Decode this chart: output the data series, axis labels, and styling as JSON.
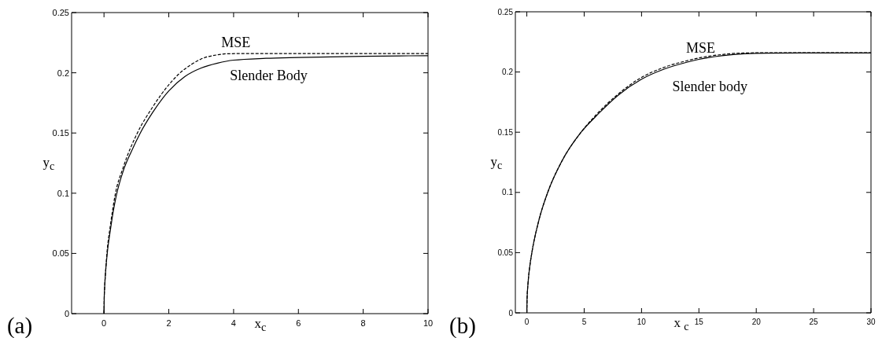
{
  "chart_data": [
    {
      "type": "line",
      "xlabel": "x$_{c}$",
      "ylabel": "y$_{c}$",
      "annotations": [
        "(a)"
      ],
      "xlim": [
        -1,
        10
      ],
      "xticks": [
        0,
        2,
        4,
        6,
        8,
        10
      ],
      "ylim": [
        0,
        0.25
      ],
      "yticks": [
        0,
        0.05,
        0.1,
        0.15,
        0.2,
        0.25
      ],
      "series": [
        {
          "name": "MSE",
          "color": "#000000",
          "line_style": "dashed",
          "x": [
            0,
            0.005,
            0.02,
            0.05,
            0.09,
            0.19,
            0.26,
            0.34,
            0.6,
            1.03,
            1.5,
            2,
            2.33,
            2.7,
            3,
            3.5,
            3.8,
            4.5,
            10
          ],
          "values": [
            0,
            0.011,
            0.022,
            0.035,
            0.05,
            0.072,
            0.085,
            0.098,
            0.122,
            0.15,
            0.1715,
            0.19,
            0.1995,
            0.207,
            0.2115,
            0.2149,
            0.2158,
            0.216,
            0.216
          ]
        },
        {
          "name": "Slender Body",
          "color": "#000000",
          "line_style": "solid",
          "x": [
            0,
            0.005,
            0.02,
            0.05,
            0.1,
            0.2,
            0.28,
            0.38,
            0.6,
            0.85,
            1.12,
            1.5,
            2,
            2.5,
            3,
            3.5,
            4,
            5,
            6,
            8,
            10
          ],
          "values": [
            0,
            0.011,
            0.022,
            0.035,
            0.05,
            0.07,
            0.084,
            0.098,
            0.119,
            0.135,
            0.15,
            0.167,
            0.185,
            0.197,
            0.204,
            0.208,
            0.2105,
            0.212,
            0.2127,
            0.2137,
            0.2142
          ]
        }
      ]
    },
    {
      "type": "line",
      "xlabel": "x $_{c}$",
      "ylabel": "y$_{c}$",
      "annotations": [
        "(b)"
      ],
      "xlim": [
        -1,
        30
      ],
      "xticks": [
        0,
        5,
        10,
        15,
        20,
        25,
        30
      ],
      "ylim": [
        0,
        0.25
      ],
      "yticks": [
        0,
        0.05,
        0.1,
        0.15,
        0.2,
        0.25
      ],
      "series": [
        {
          "name": "MSE",
          "color": "#000000",
          "line_style": "dashed",
          "x": [
            0,
            0.02,
            0.1,
            0.25,
            0.44,
            1,
            1.86,
            3,
            4.73,
            6,
            8,
            10,
            12,
            14,
            15,
            17,
            19,
            21,
            25,
            30
          ],
          "values": [
            0,
            0.011,
            0.024,
            0.038,
            0.05,
            0.075,
            0.101,
            0.125,
            0.15,
            0.164,
            0.182,
            0.1955,
            0.204,
            0.2095,
            0.2117,
            0.2145,
            0.2158,
            0.216,
            0.216,
            0.216
          ]
        },
        {
          "name": "Slender body",
          "color": "#000000",
          "line_style": "solid",
          "x": [
            0,
            0.02,
            0.1,
            0.25,
            0.44,
            1,
            1.86,
            3,
            4.73,
            6,
            8,
            10,
            12,
            14,
            15,
            17,
            19,
            21,
            25,
            30
          ],
          "values": [
            0,
            0.011,
            0.024,
            0.038,
            0.05,
            0.075,
            0.101,
            0.125,
            0.15,
            0.163,
            0.181,
            0.194,
            0.2025,
            0.2082,
            0.2105,
            0.2135,
            0.2152,
            0.2157,
            0.2158,
            0.2158
          ]
        }
      ]
    }
  ]
}
